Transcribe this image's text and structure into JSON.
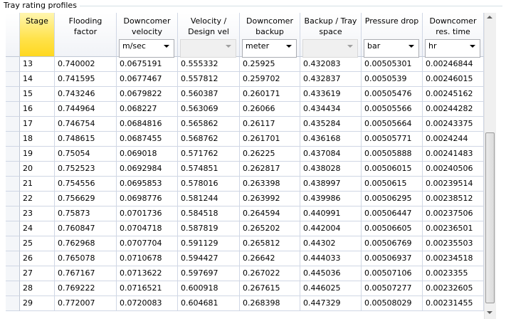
{
  "group_title": "Tray rating profiles",
  "table": {
    "columns": [
      {
        "label": "Stage"
      },
      {
        "label": "Flooding factor"
      },
      {
        "label": "Downcomer velocity",
        "unit": "m/sec"
      },
      {
        "label": "Velocity / Design vel",
        "unit": null
      },
      {
        "label": "Downcomer backup",
        "unit": "meter"
      },
      {
        "label": "Backup / Tray space",
        "unit": null
      },
      {
        "label": "Pressure drop",
        "unit": "bar"
      },
      {
        "label": "Downcomer res. time",
        "unit": "hr"
      }
    ],
    "rows": [
      [
        "13",
        "0.740002",
        "0.0675191",
        "0.555332",
        "0.25925",
        "0.432083",
        "0.00505301",
        "0.00246844"
      ],
      [
        "14",
        "0.741595",
        "0.0677467",
        "0.557812",
        "0.259702",
        "0.432837",
        "0.0050539",
        "0.00246015"
      ],
      [
        "15",
        "0.743246",
        "0.0679822",
        "0.560387",
        "0.260171",
        "0.433619",
        "0.00505476",
        "0.00245162"
      ],
      [
        "16",
        "0.744964",
        "0.068227",
        "0.563069",
        "0.26066",
        "0.434434",
        "0.00505566",
        "0.00244282"
      ],
      [
        "17",
        "0.746754",
        "0.0684816",
        "0.565862",
        "0.26117",
        "0.435284",
        "0.00505664",
        "0.00243375"
      ],
      [
        "18",
        "0.748615",
        "0.0687455",
        "0.568762",
        "0.261701",
        "0.436168",
        "0.00505771",
        "0.0024244"
      ],
      [
        "19",
        "0.75054",
        "0.069018",
        "0.571762",
        "0.26225",
        "0.437084",
        "0.00505888",
        "0.00241483"
      ],
      [
        "20",
        "0.752523",
        "0.0692984",
        "0.574851",
        "0.262817",
        "0.438028",
        "0.00506015",
        "0.00240506"
      ],
      [
        "21",
        "0.754556",
        "0.0695853",
        "0.578016",
        "0.263398",
        "0.438997",
        "0.0050615",
        "0.00239514"
      ],
      [
        "22",
        "0.756629",
        "0.0698776",
        "0.581244",
        "0.263992",
        "0.439986",
        "0.00506295",
        "0.00238512"
      ],
      [
        "23",
        "0.75873",
        "0.0701736",
        "0.584518",
        "0.264594",
        "0.440991",
        "0.00506447",
        "0.00237506"
      ],
      [
        "24",
        "0.760847",
        "0.0704718",
        "0.587819",
        "0.265202",
        "0.442004",
        "0.00506605",
        "0.00236501"
      ],
      [
        "25",
        "0.762968",
        "0.0707704",
        "0.591129",
        "0.265812",
        "0.44302",
        "0.00506769",
        "0.00235503"
      ],
      [
        "26",
        "0.765078",
        "0.0710678",
        "0.594427",
        "0.26642",
        "0.444033",
        "0.00506937",
        "0.00234518"
      ],
      [
        "27",
        "0.767167",
        "0.0713622",
        "0.597697",
        "0.267022",
        "0.445036",
        "0.00507106",
        "0.0023355"
      ],
      [
        "28",
        "0.769222",
        "0.0716521",
        "0.600918",
        "0.267615",
        "0.446025",
        "0.00507277",
        "0.00232605"
      ],
      [
        "29",
        "0.772007",
        "0.0720083",
        "0.604681",
        "0.268398",
        "0.447329",
        "0.00508029",
        "0.00231455"
      ]
    ]
  }
}
